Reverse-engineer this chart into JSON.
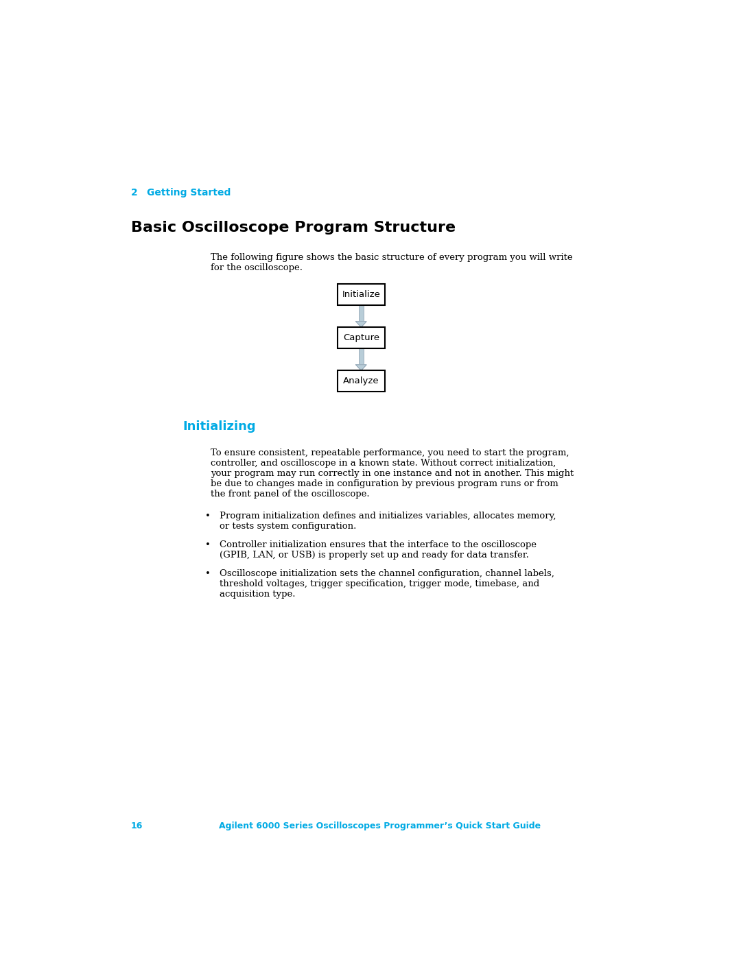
{
  "background_color": "#ffffff",
  "page_width": 10.8,
  "page_height": 13.97,
  "chapter_label": "2",
  "chapter_title": "Getting Started",
  "chapter_color": "#00aae4",
  "section_title": "Basic Oscilloscope Program Structure",
  "section_title_fontsize": 16,
  "intro_line1": "The following figure shows the basic structure of every program you will write",
  "intro_line2": "for the oscilloscope.",
  "flowchart_boxes": [
    "Initialize",
    "Capture",
    "Analyze"
  ],
  "subsection_title": "Initializing",
  "subsection_color": "#00aae4",
  "body_lines": [
    "To ensure consistent, repeatable performance, you need to start the program,",
    "controller, and oscilloscope in a known state. Without correct initialization,",
    "your program may run correctly in one instance and not in another. This might",
    "be due to changes made in configuration by previous program runs or from",
    "the front panel of the oscilloscope."
  ],
  "bullet1_lines": [
    "Program initialization defines and initializes variables, allocates memory,",
    "or tests system configuration."
  ],
  "bullet2_lines": [
    "Controller initialization ensures that the interface to the oscilloscope",
    "(GPIB, LAN, or USB) is properly set up and ready for data transfer."
  ],
  "bullet3_lines": [
    "Oscilloscope initialization sets the channel configuration, channel labels,",
    "threshold voltages, trigger specification, trigger mode, timebase, and",
    "acquisition type."
  ],
  "footer_page": "16",
  "footer_text": "Agilent 6000 Series Oscilloscopes Programmer’s Quick Start Guide",
  "footer_color": "#00aae4",
  "arrow_color": "#b8cdd8",
  "box_border_color": "#000000",
  "box_fill_color": "#ffffff",
  "text_color": "#000000",
  "body_fontsize": 9.5,
  "bullet_fontsize": 9.5,
  "subsection_fontsize": 13,
  "chapter_fontsize": 10
}
